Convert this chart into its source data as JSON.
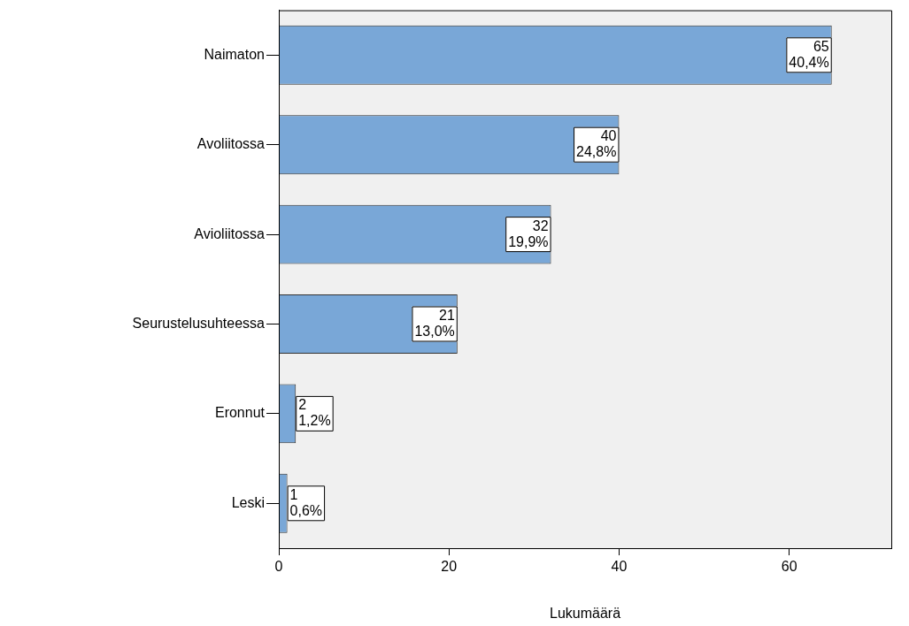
{
  "chart_data": {
    "type": "bar",
    "orientation": "horizontal",
    "xlabel": "Lukumäärä",
    "categories": [
      "Naimaton",
      "Avoliitossa",
      "Avioliitossa",
      "Seurustelusuhteessa",
      "Eronnut",
      "Leski"
    ],
    "values": [
      65,
      40,
      32,
      21,
      2,
      1
    ],
    "value_labels": [
      "65\n40,4%",
      "40\n24,8%",
      "32\n19,9%",
      "21\n13,0%",
      "2\n1,2%",
      "1\n0,6%"
    ],
    "color": "#79a7d7",
    "xlim": [
      0,
      72
    ],
    "xticks": [
      0,
      20,
      40,
      60
    ],
    "grid": false,
    "legend": false
  }
}
